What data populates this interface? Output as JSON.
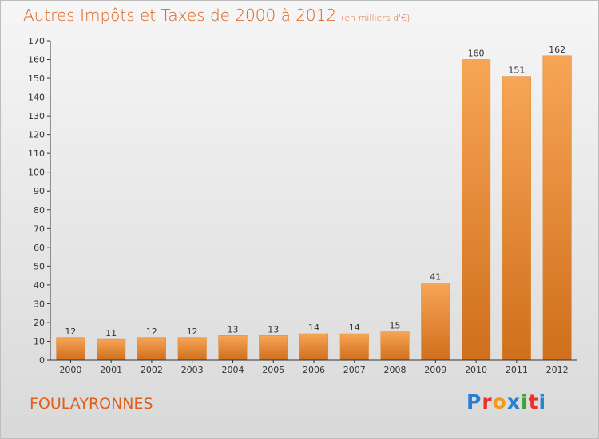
{
  "chart_data": {
    "type": "bar",
    "title": "Autres Impôts et Taxes de 2000 à 2012",
    "subtitle": "(en milliers d'€)",
    "categories": [
      "2000",
      "2001",
      "2002",
      "2003",
      "2004",
      "2005",
      "2006",
      "2007",
      "2008",
      "2009",
      "2010",
      "2011",
      "2012"
    ],
    "values": [
      12,
      11,
      12,
      12,
      13,
      13,
      14,
      14,
      15,
      41,
      160,
      151,
      162
    ],
    "ylim": [
      0,
      170
    ],
    "yticks": [
      0,
      10,
      20,
      30,
      40,
      50,
      60,
      70,
      80,
      90,
      100,
      110,
      120,
      130,
      140,
      150,
      160,
      170
    ],
    "grid": false,
    "bar_color": "#f29b3c"
  },
  "footer": {
    "commune": "FOULAYRONNES",
    "logo_letters": [
      "P",
      "r",
      "o",
      "x",
      "i",
      "t",
      "i"
    ],
    "logo_colors": [
      "#2a7fd0",
      "#e8332a",
      "#f29b1a",
      "#2a7fd0",
      "#3aa535",
      "#e8332a",
      "#2a7fd0"
    ]
  }
}
